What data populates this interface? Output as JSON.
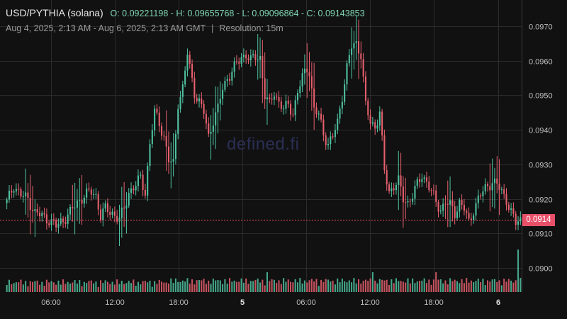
{
  "header": {
    "pair": "USD/PYTHIA (solana)",
    "ohlc": "O: 0.09221198 - H: 0.09655768 - L: 0.09096864 - C: 0.09143853",
    "range": "Aug 4, 2025, 2:13 AM - Aug 6, 2025, 2:13 AM GMT",
    "separator": "|",
    "resolution": "Resolution: 15m"
  },
  "watermark": "defined.fi",
  "last_price_label": "0.0914",
  "colors": {
    "up": "#4fc3a1",
    "down": "#e8606e",
    "grid": "#2b2b2b",
    "text": "#bdbdbd",
    "price_line": "#e8506a",
    "bg": "#111111"
  },
  "chart_data": {
    "type": "candlestick",
    "title": "USD/PYTHIA (solana)",
    "y_ticks": [
      "0.0970",
      "0.0960",
      "0.0950",
      "0.0940",
      "0.0930",
      "0.0920",
      "0.0910",
      "0.0900"
    ],
    "ylim": [
      0.0897,
      0.0973
    ],
    "x_ticks": [
      "06:00",
      "12:00",
      "18:00",
      "5",
      "06:00",
      "12:00",
      "18:00",
      "6"
    ],
    "last_price": 0.0914,
    "keyframes_close": [
      [
        0,
        0.0919
      ],
      [
        3,
        0.0924
      ],
      [
        6,
        0.0921
      ],
      [
        9,
        0.092
      ],
      [
        12,
        0.0916
      ],
      [
        15,
        0.0915
      ],
      [
        18,
        0.0914
      ],
      [
        21,
        0.0912
      ],
      [
        24,
        0.0914
      ],
      [
        27,
        0.0916
      ],
      [
        30,
        0.0919
      ],
      [
        33,
        0.0921
      ],
      [
        36,
        0.0922
      ],
      [
        38,
        0.0921
      ],
      [
        40,
        0.0915
      ],
      [
        42,
        0.0917
      ],
      [
        45,
        0.0916
      ],
      [
        48,
        0.0914
      ],
      [
        50,
        0.0917
      ],
      [
        52,
        0.0922
      ],
      [
        55,
        0.0924
      ],
      [
        57,
        0.0926
      ],
      [
        59,
        0.0922
      ],
      [
        61,
        0.0936
      ],
      [
        63,
        0.0945
      ],
      [
        65,
        0.0942
      ],
      [
        67,
        0.0938
      ],
      [
        69,
        0.0931
      ],
      [
        71,
        0.093
      ],
      [
        73,
        0.0948
      ],
      [
        75,
        0.0952
      ],
      [
        77,
        0.0962
      ],
      [
        78,
        0.0958
      ],
      [
        80,
        0.0951
      ],
      [
        82,
        0.0948
      ],
      [
        84,
        0.0945
      ],
      [
        86,
        0.0938
      ],
      [
        88,
        0.0943
      ],
      [
        90,
        0.0946
      ],
      [
        92,
        0.0952
      ],
      [
        94,
        0.0955
      ],
      [
        96,
        0.0957
      ],
      [
        98,
        0.0959
      ],
      [
        100,
        0.0961
      ],
      [
        102,
        0.0962
      ],
      [
        104,
        0.096
      ],
      [
        106,
        0.0961
      ],
      [
        108,
        0.0961
      ],
      [
        110,
        0.095
      ],
      [
        112,
        0.0947
      ],
      [
        114,
        0.0951
      ],
      [
        116,
        0.0948
      ],
      [
        118,
        0.0946
      ],
      [
        120,
        0.0947
      ],
      [
        122,
        0.0945
      ],
      [
        124,
        0.0951
      ],
      [
        126,
        0.0955
      ],
      [
        128,
        0.0958
      ],
      [
        129,
        0.0957
      ],
      [
        131,
        0.0946
      ],
      [
        133,
        0.0944
      ],
      [
        135,
        0.0939
      ],
      [
        137,
        0.0936
      ],
      [
        139,
        0.0938
      ],
      [
        141,
        0.0942
      ],
      [
        143,
        0.095
      ],
      [
        145,
        0.0958
      ],
      [
        147,
        0.0964
      ],
      [
        149,
        0.0965
      ],
      [
        151,
        0.0962
      ],
      [
        153,
        0.0947
      ],
      [
        155,
        0.0942
      ],
      [
        157,
        0.0941
      ],
      [
        159,
        0.0945
      ],
      [
        161,
        0.0928
      ],
      [
        163,
        0.0922
      ],
      [
        165,
        0.0924
      ],
      [
        167,
        0.0925
      ],
      [
        169,
        0.092
      ],
      [
        171,
        0.0919
      ],
      [
        173,
        0.0921
      ],
      [
        175,
        0.0924
      ],
      [
        177,
        0.0927
      ],
      [
        179,
        0.0925
      ],
      [
        181,
        0.0922
      ],
      [
        183,
        0.0919
      ],
      [
        185,
        0.0917
      ],
      [
        187,
        0.0919
      ],
      [
        189,
        0.0918
      ],
      [
        191,
        0.0916
      ],
      [
        193,
        0.0919
      ],
      [
        195,
        0.0917
      ],
      [
        197,
        0.0913
      ],
      [
        199,
        0.0917
      ],
      [
        201,
        0.092
      ],
      [
        203,
        0.0922
      ],
      [
        205,
        0.0924
      ],
      [
        207,
        0.0925
      ],
      [
        209,
        0.0924
      ],
      [
        211,
        0.0922
      ],
      [
        213,
        0.092
      ],
      [
        215,
        0.0916
      ],
      [
        217,
        0.0913
      ],
      [
        219,
        0.0914
      ]
    ]
  }
}
